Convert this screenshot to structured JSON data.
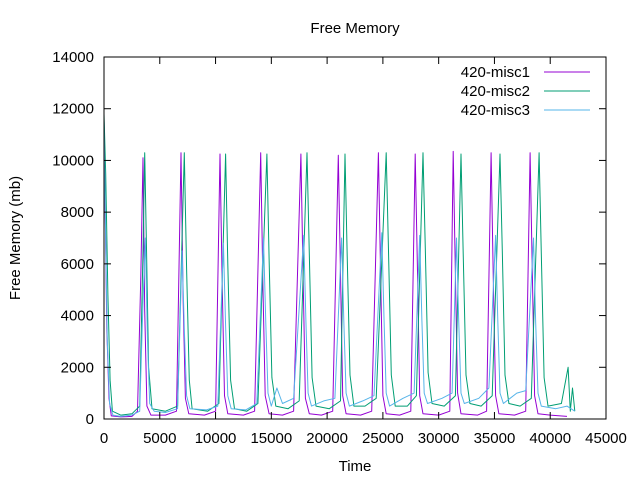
{
  "chart_data": {
    "type": "line",
    "title": "Free Memory",
    "xlabel": "Time",
    "ylabel": "Free Memory (mb)",
    "xlim": [
      0,
      45000
    ],
    "ylim": [
      0,
      14000
    ],
    "xticks": [
      0,
      5000,
      10000,
      15000,
      20000,
      25000,
      30000,
      35000,
      40000,
      45000
    ],
    "yticks": [
      0,
      2000,
      4000,
      6000,
      8000,
      10000,
      12000,
      14000
    ],
    "grid": false,
    "legend_position": "top-right",
    "series": [
      {
        "name": "420-misc1",
        "color": "#9400d3",
        "points": [
          [
            0,
            11600
          ],
          [
            80,
            9000
          ],
          [
            250,
            3500
          ],
          [
            450,
            800
          ],
          [
            650,
            120
          ],
          [
            1500,
            80
          ],
          [
            2500,
            100
          ],
          [
            3000,
            300
          ],
          [
            3300,
            5500
          ],
          [
            3500,
            10100
          ],
          [
            3650,
            4200
          ],
          [
            3850,
            500
          ],
          [
            4200,
            150
          ],
          [
            5500,
            150
          ],
          [
            6500,
            300
          ],
          [
            6900,
            10300
          ],
          [
            7100,
            4500
          ],
          [
            7300,
            800
          ],
          [
            7600,
            200
          ],
          [
            9000,
            150
          ],
          [
            10000,
            300
          ],
          [
            10400,
            10250
          ],
          [
            10600,
            5200
          ],
          [
            10800,
            900
          ],
          [
            11100,
            200
          ],
          [
            12500,
            150
          ],
          [
            13500,
            300
          ],
          [
            14050,
            10300
          ],
          [
            14250,
            5000
          ],
          [
            14450,
            900
          ],
          [
            14800,
            200
          ],
          [
            16000,
            150
          ],
          [
            17000,
            300
          ],
          [
            17650,
            10250
          ],
          [
            17850,
            5500
          ],
          [
            18050,
            800
          ],
          [
            18400,
            200
          ],
          [
            19500,
            150
          ],
          [
            20500,
            300
          ],
          [
            21000,
            10200
          ],
          [
            21200,
            5600
          ],
          [
            21400,
            900
          ],
          [
            21700,
            200
          ],
          [
            23000,
            150
          ],
          [
            24000,
            300
          ],
          [
            24600,
            10300
          ],
          [
            24800,
            5400
          ],
          [
            25000,
            900
          ],
          [
            25300,
            200
          ],
          [
            26500,
            150
          ],
          [
            27500,
            300
          ],
          [
            27900,
            10250
          ],
          [
            28100,
            5700
          ],
          [
            28300,
            900
          ],
          [
            28600,
            200
          ],
          [
            30000,
            150
          ],
          [
            31000,
            300
          ],
          [
            31300,
            10350
          ],
          [
            31500,
            5600
          ],
          [
            31700,
            1000
          ],
          [
            32000,
            200
          ],
          [
            33500,
            150
          ],
          [
            34300,
            300
          ],
          [
            34700,
            10300
          ],
          [
            34900,
            5400
          ],
          [
            35100,
            900
          ],
          [
            35400,
            200
          ],
          [
            36800,
            150
          ],
          [
            37800,
            300
          ],
          [
            38200,
            10300
          ],
          [
            38400,
            5500
          ],
          [
            38600,
            900
          ],
          [
            38900,
            200
          ],
          [
            40000,
            150
          ],
          [
            41500,
            100
          ]
        ]
      },
      {
        "name": "420-misc2",
        "color": "#009e73",
        "points": [
          [
            0,
            11800
          ],
          [
            150,
            9500
          ],
          [
            350,
            4800
          ],
          [
            550,
            1500
          ],
          [
            750,
            300
          ],
          [
            1500,
            150
          ],
          [
            2500,
            200
          ],
          [
            3200,
            500
          ],
          [
            3500,
            6500
          ],
          [
            3650,
            10300
          ],
          [
            3800,
            6800
          ],
          [
            4000,
            2000
          ],
          [
            4300,
            400
          ],
          [
            5500,
            300
          ],
          [
            6600,
            500
          ],
          [
            7200,
            10300
          ],
          [
            7400,
            5800
          ],
          [
            7650,
            1500
          ],
          [
            7900,
            400
          ],
          [
            9300,
            300
          ],
          [
            10300,
            600
          ],
          [
            10900,
            10250
          ],
          [
            11100,
            6000
          ],
          [
            11350,
            1500
          ],
          [
            11700,
            400
          ],
          [
            12800,
            300
          ],
          [
            13800,
            600
          ],
          [
            14600,
            10250
          ],
          [
            14800,
            6200
          ],
          [
            15050,
            1600
          ],
          [
            15400,
            500
          ],
          [
            16500,
            400
          ],
          [
            17500,
            700
          ],
          [
            18200,
            10300
          ],
          [
            18400,
            6400
          ],
          [
            18650,
            1600
          ],
          [
            19000,
            500
          ],
          [
            20200,
            400
          ],
          [
            21200,
            700
          ],
          [
            21600,
            10250
          ],
          [
            21800,
            6300
          ],
          [
            22050,
            1700
          ],
          [
            22400,
            500
          ],
          [
            23400,
            500
          ],
          [
            24400,
            800
          ],
          [
            25300,
            10300
          ],
          [
            25500,
            6500
          ],
          [
            25750,
            1700
          ],
          [
            26100,
            500
          ],
          [
            27200,
            500
          ],
          [
            28000,
            900
          ],
          [
            28600,
            10300
          ],
          [
            28800,
            6600
          ],
          [
            29050,
            1800
          ],
          [
            29400,
            600
          ],
          [
            30500,
            500
          ],
          [
            31500,
            900
          ],
          [
            32000,
            10250
          ],
          [
            32200,
            6400
          ],
          [
            32450,
            1700
          ],
          [
            32800,
            600
          ],
          [
            33800,
            500
          ],
          [
            34800,
            900
          ],
          [
            35500,
            10250
          ],
          [
            35700,
            6500
          ],
          [
            35950,
            1700
          ],
          [
            36300,
            600
          ],
          [
            37300,
            500
          ],
          [
            38300,
            800
          ],
          [
            39000,
            10300
          ],
          [
            39200,
            6400
          ],
          [
            39450,
            1600
          ],
          [
            39800,
            500
          ],
          [
            41000,
            600
          ],
          [
            41600,
            2000
          ],
          [
            41800,
            300
          ],
          [
            42000,
            1200
          ],
          [
            42200,
            300
          ]
        ]
      },
      {
        "name": "420-misc3",
        "color": "#56b4e9",
        "points": [
          [
            0,
            11500
          ],
          [
            100,
            8500
          ],
          [
            300,
            3000
          ],
          [
            500,
            600
          ],
          [
            800,
            150
          ],
          [
            1500,
            100
          ],
          [
            2500,
            150
          ],
          [
            3200,
            300
          ],
          [
            3500,
            4500
          ],
          [
            3700,
            7000
          ],
          [
            3900,
            3000
          ],
          [
            4100,
            600
          ],
          [
            4500,
            300
          ],
          [
            5500,
            250
          ],
          [
            6600,
            400
          ],
          [
            7000,
            6500
          ],
          [
            7200,
            3500
          ],
          [
            7400,
            900
          ],
          [
            7700,
            400
          ],
          [
            9200,
            350
          ],
          [
            10200,
            500
          ],
          [
            10700,
            6800
          ],
          [
            10900,
            3600
          ],
          [
            11100,
            900
          ],
          [
            11400,
            400
          ],
          [
            12700,
            350
          ],
          [
            13700,
            600
          ],
          [
            14300,
            7000
          ],
          [
            14500,
            3700
          ],
          [
            14700,
            1000
          ],
          [
            15000,
            500
          ],
          [
            15500,
            1200
          ],
          [
            16000,
            600
          ],
          [
            17000,
            800
          ],
          [
            17900,
            7100
          ],
          [
            18100,
            3800
          ],
          [
            18300,
            1000
          ],
          [
            18600,
            500
          ],
          [
            19700,
            700
          ],
          [
            20700,
            800
          ],
          [
            21300,
            7000
          ],
          [
            21500,
            3800
          ],
          [
            21700,
            1000
          ],
          [
            22000,
            500
          ],
          [
            23200,
            700
          ],
          [
            24200,
            900
          ],
          [
            24900,
            7200
          ],
          [
            25100,
            3900
          ],
          [
            25300,
            1000
          ],
          [
            25600,
            500
          ],
          [
            26800,
            800
          ],
          [
            27800,
            1000
          ],
          [
            28300,
            7100
          ],
          [
            28500,
            3800
          ],
          [
            28700,
            1000
          ],
          [
            29000,
            600
          ],
          [
            30300,
            800
          ],
          [
            31200,
            1000
          ],
          [
            31600,
            7000
          ],
          [
            31800,
            3800
          ],
          [
            32000,
            1000
          ],
          [
            32300,
            600
          ],
          [
            33600,
            800
          ],
          [
            34500,
            1200
          ],
          [
            35100,
            7100
          ],
          [
            35300,
            3800
          ],
          [
            35500,
            1000
          ],
          [
            35800,
            600
          ],
          [
            37000,
            1000
          ],
          [
            37800,
            1100
          ],
          [
            38500,
            7000
          ],
          [
            38700,
            3700
          ],
          [
            38900,
            1000
          ],
          [
            39200,
            500
          ],
          [
            40500,
            400
          ],
          [
            41500,
            500
          ],
          [
            42200,
            300
          ]
        ]
      }
    ]
  }
}
